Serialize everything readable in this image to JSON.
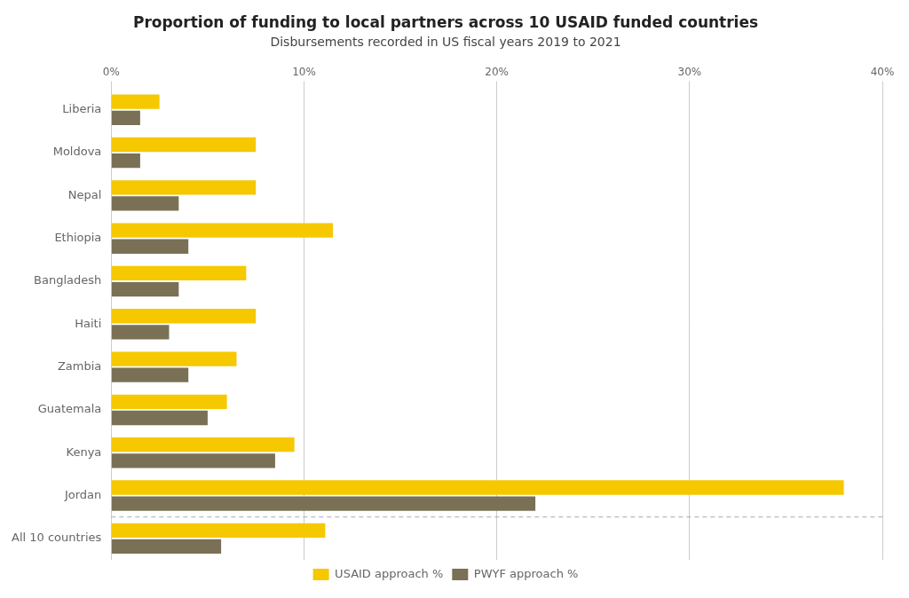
{
  "chart_data": {
    "type": "bar",
    "orientation": "horizontal",
    "title": "Proportion of funding to local partners across 10 USAID funded countries",
    "subtitle": "Disbursements recorded in US fiscal years 2019 to 2021",
    "categories": [
      "Liberia",
      "Moldova",
      "Nepal",
      "Ethiopia",
      "Bangladesh",
      "Haiti",
      "Zambia",
      "Guatemala",
      "Kenya",
      "Jordan",
      "All 10 countries"
    ],
    "series": [
      {
        "name": "USAID approach %",
        "color": "#F5C800",
        "values": [
          2.5,
          7.5,
          7.5,
          11.5,
          7.0,
          7.5,
          6.5,
          6.0,
          9.5,
          38.0,
          11.1
        ]
      },
      {
        "name": "PWYF approach %",
        "color": "#7A7055",
        "values": [
          1.5,
          1.5,
          3.5,
          4.0,
          3.5,
          3.0,
          4.0,
          5.0,
          8.5,
          22.0,
          5.7
        ]
      }
    ],
    "xlim": [
      0,
      40
    ],
    "xticks": [
      {
        "value": 0,
        "label": "0%"
      },
      {
        "value": 10,
        "label": "10%"
      },
      {
        "value": 20,
        "label": "20%"
      },
      {
        "value": 30,
        "label": "30%"
      },
      {
        "value": 40,
        "label": "40%"
      }
    ],
    "grid": true,
    "legend": "bottom"
  }
}
